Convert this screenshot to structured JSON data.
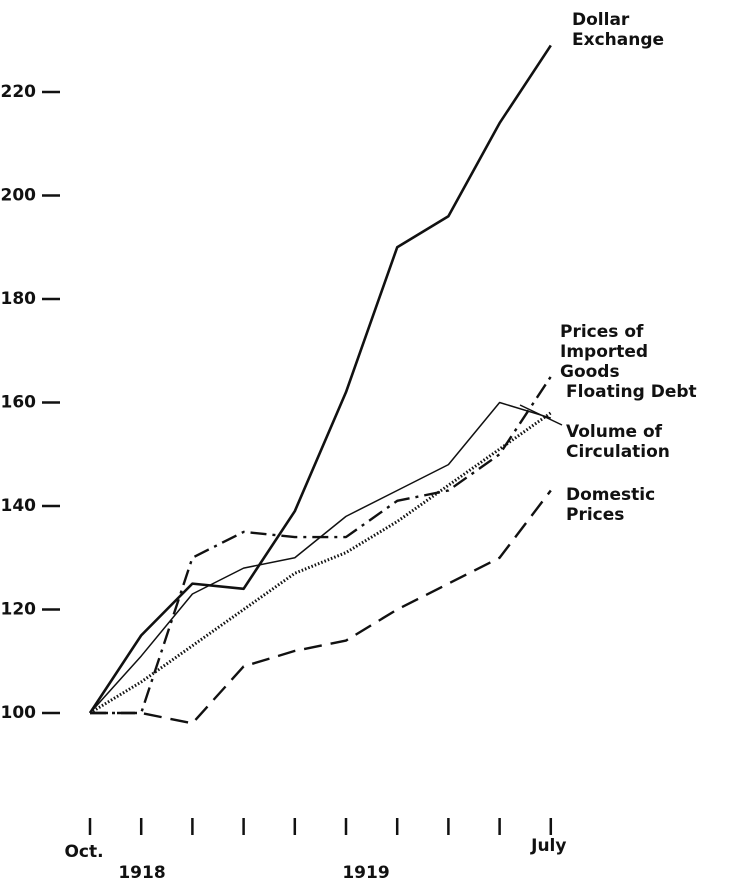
{
  "chart_data": {
    "type": "line",
    "categories": [
      "Oct.",
      null,
      null,
      null,
      null,
      null,
      null,
      null,
      null,
      "July"
    ],
    "annotations": [
      "1918",
      "1919"
    ],
    "ylim": [
      80,
      235
    ],
    "yticks": [
      100,
      120,
      140,
      160,
      180,
      200,
      220
    ],
    "series": [
      {
        "name": "Dollar Exchange",
        "color": "#111111",
        "style": "solid-thick",
        "values": [
          100,
          115,
          125,
          124,
          139,
          162,
          190,
          196,
          214,
          229
        ]
      },
      {
        "name": "Prices of Imported Goods",
        "color": "#111111",
        "style": "dashdot",
        "values": [
          100,
          100,
          130,
          135,
          134,
          134,
          141,
          143,
          150,
          165
        ]
      },
      {
        "name": "Floating Debt",
        "color": "#111111",
        "style": "dotted",
        "values": [
          100,
          106,
          113,
          120,
          127,
          131,
          137,
          144,
          151,
          158
        ]
      },
      {
        "name": "Volume of Circulation",
        "color": "#111111",
        "style": "solid",
        "values": [
          100,
          111,
          123,
          128,
          130,
          138,
          143,
          148,
          160,
          157
        ]
      },
      {
        "name": "Domestic Prices",
        "color": "#111111",
        "style": "dashed",
        "values": [
          100,
          100,
          98,
          109,
          112,
          114,
          120,
          125,
          130,
          143
        ]
      }
    ]
  }
}
